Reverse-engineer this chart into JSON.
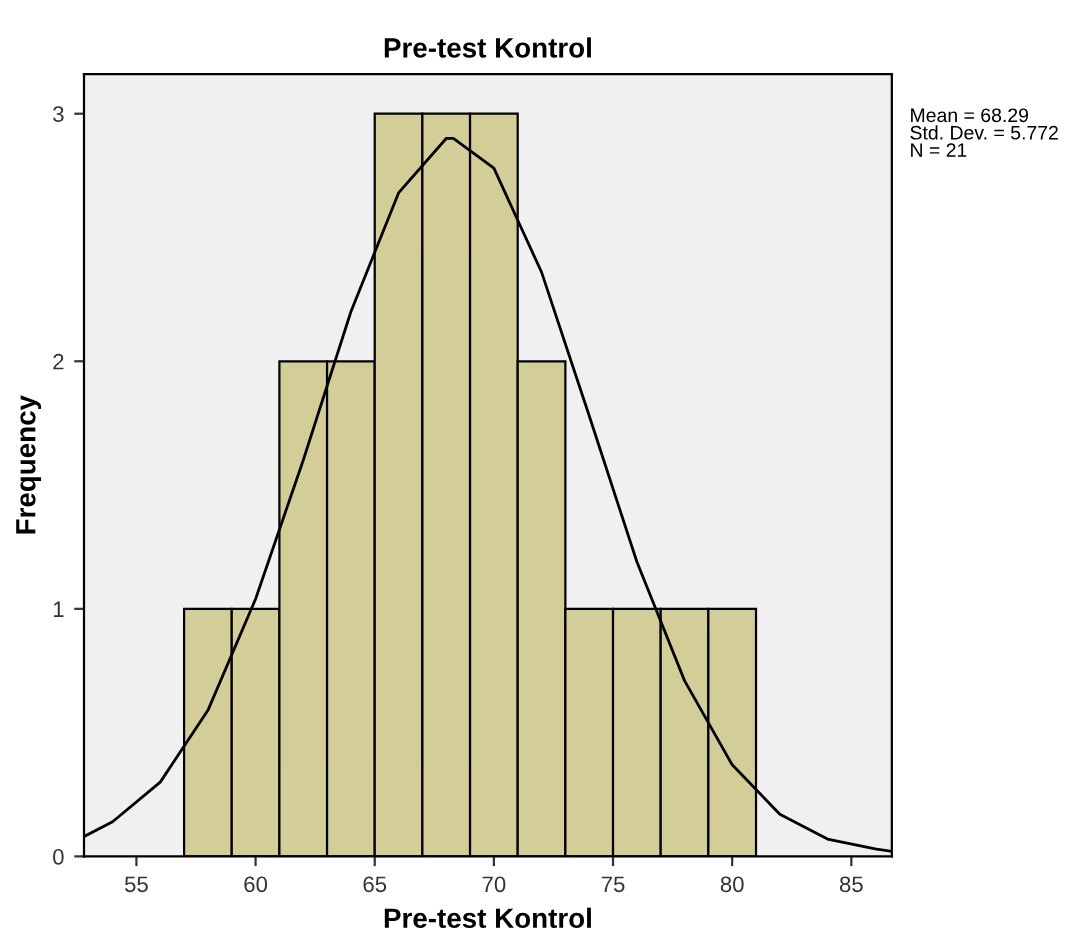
{
  "chart_data": {
    "type": "histogram",
    "title": "Pre-test Kontrol",
    "xlabel": "Pre-test Kontrol",
    "ylabel": "Frequency",
    "bins": [
      57,
      59,
      61,
      63,
      65,
      67,
      69,
      71,
      73,
      75,
      77,
      79,
      81
    ],
    "values": [
      1,
      1,
      2,
      2,
      3,
      3,
      3,
      2,
      1,
      1,
      1,
      1
    ],
    "color": "#d3ce97",
    "series": [
      {
        "type": "line",
        "color": "#000000",
        "x": [
          52.8,
          54,
          56,
          58,
          60,
          62,
          64,
          66,
          68,
          68.3,
          70,
          72,
          74,
          76,
          78,
          80,
          82,
          84,
          86,
          86.7
        ],
        "values": [
          0.08,
          0.14,
          0.3,
          0.59,
          1.04,
          1.6,
          2.2,
          2.68,
          2.9,
          2.9,
          2.78,
          2.36,
          1.78,
          1.19,
          0.71,
          0.37,
          0.17,
          0.07,
          0.03,
          0.02
        ]
      }
    ],
    "xlim": [
      52.8,
      86.7
    ],
    "ylim": [
      0,
      3.16
    ],
    "xticks": [
      55,
      60,
      65,
      70,
      75,
      80,
      85
    ],
    "yticks": [
      0,
      1,
      2,
      3
    ],
    "grid": false,
    "legend": false,
    "annotations": [
      "Mean = 68.29\nStd. Dev. = 5.772\nN = 21"
    ]
  }
}
